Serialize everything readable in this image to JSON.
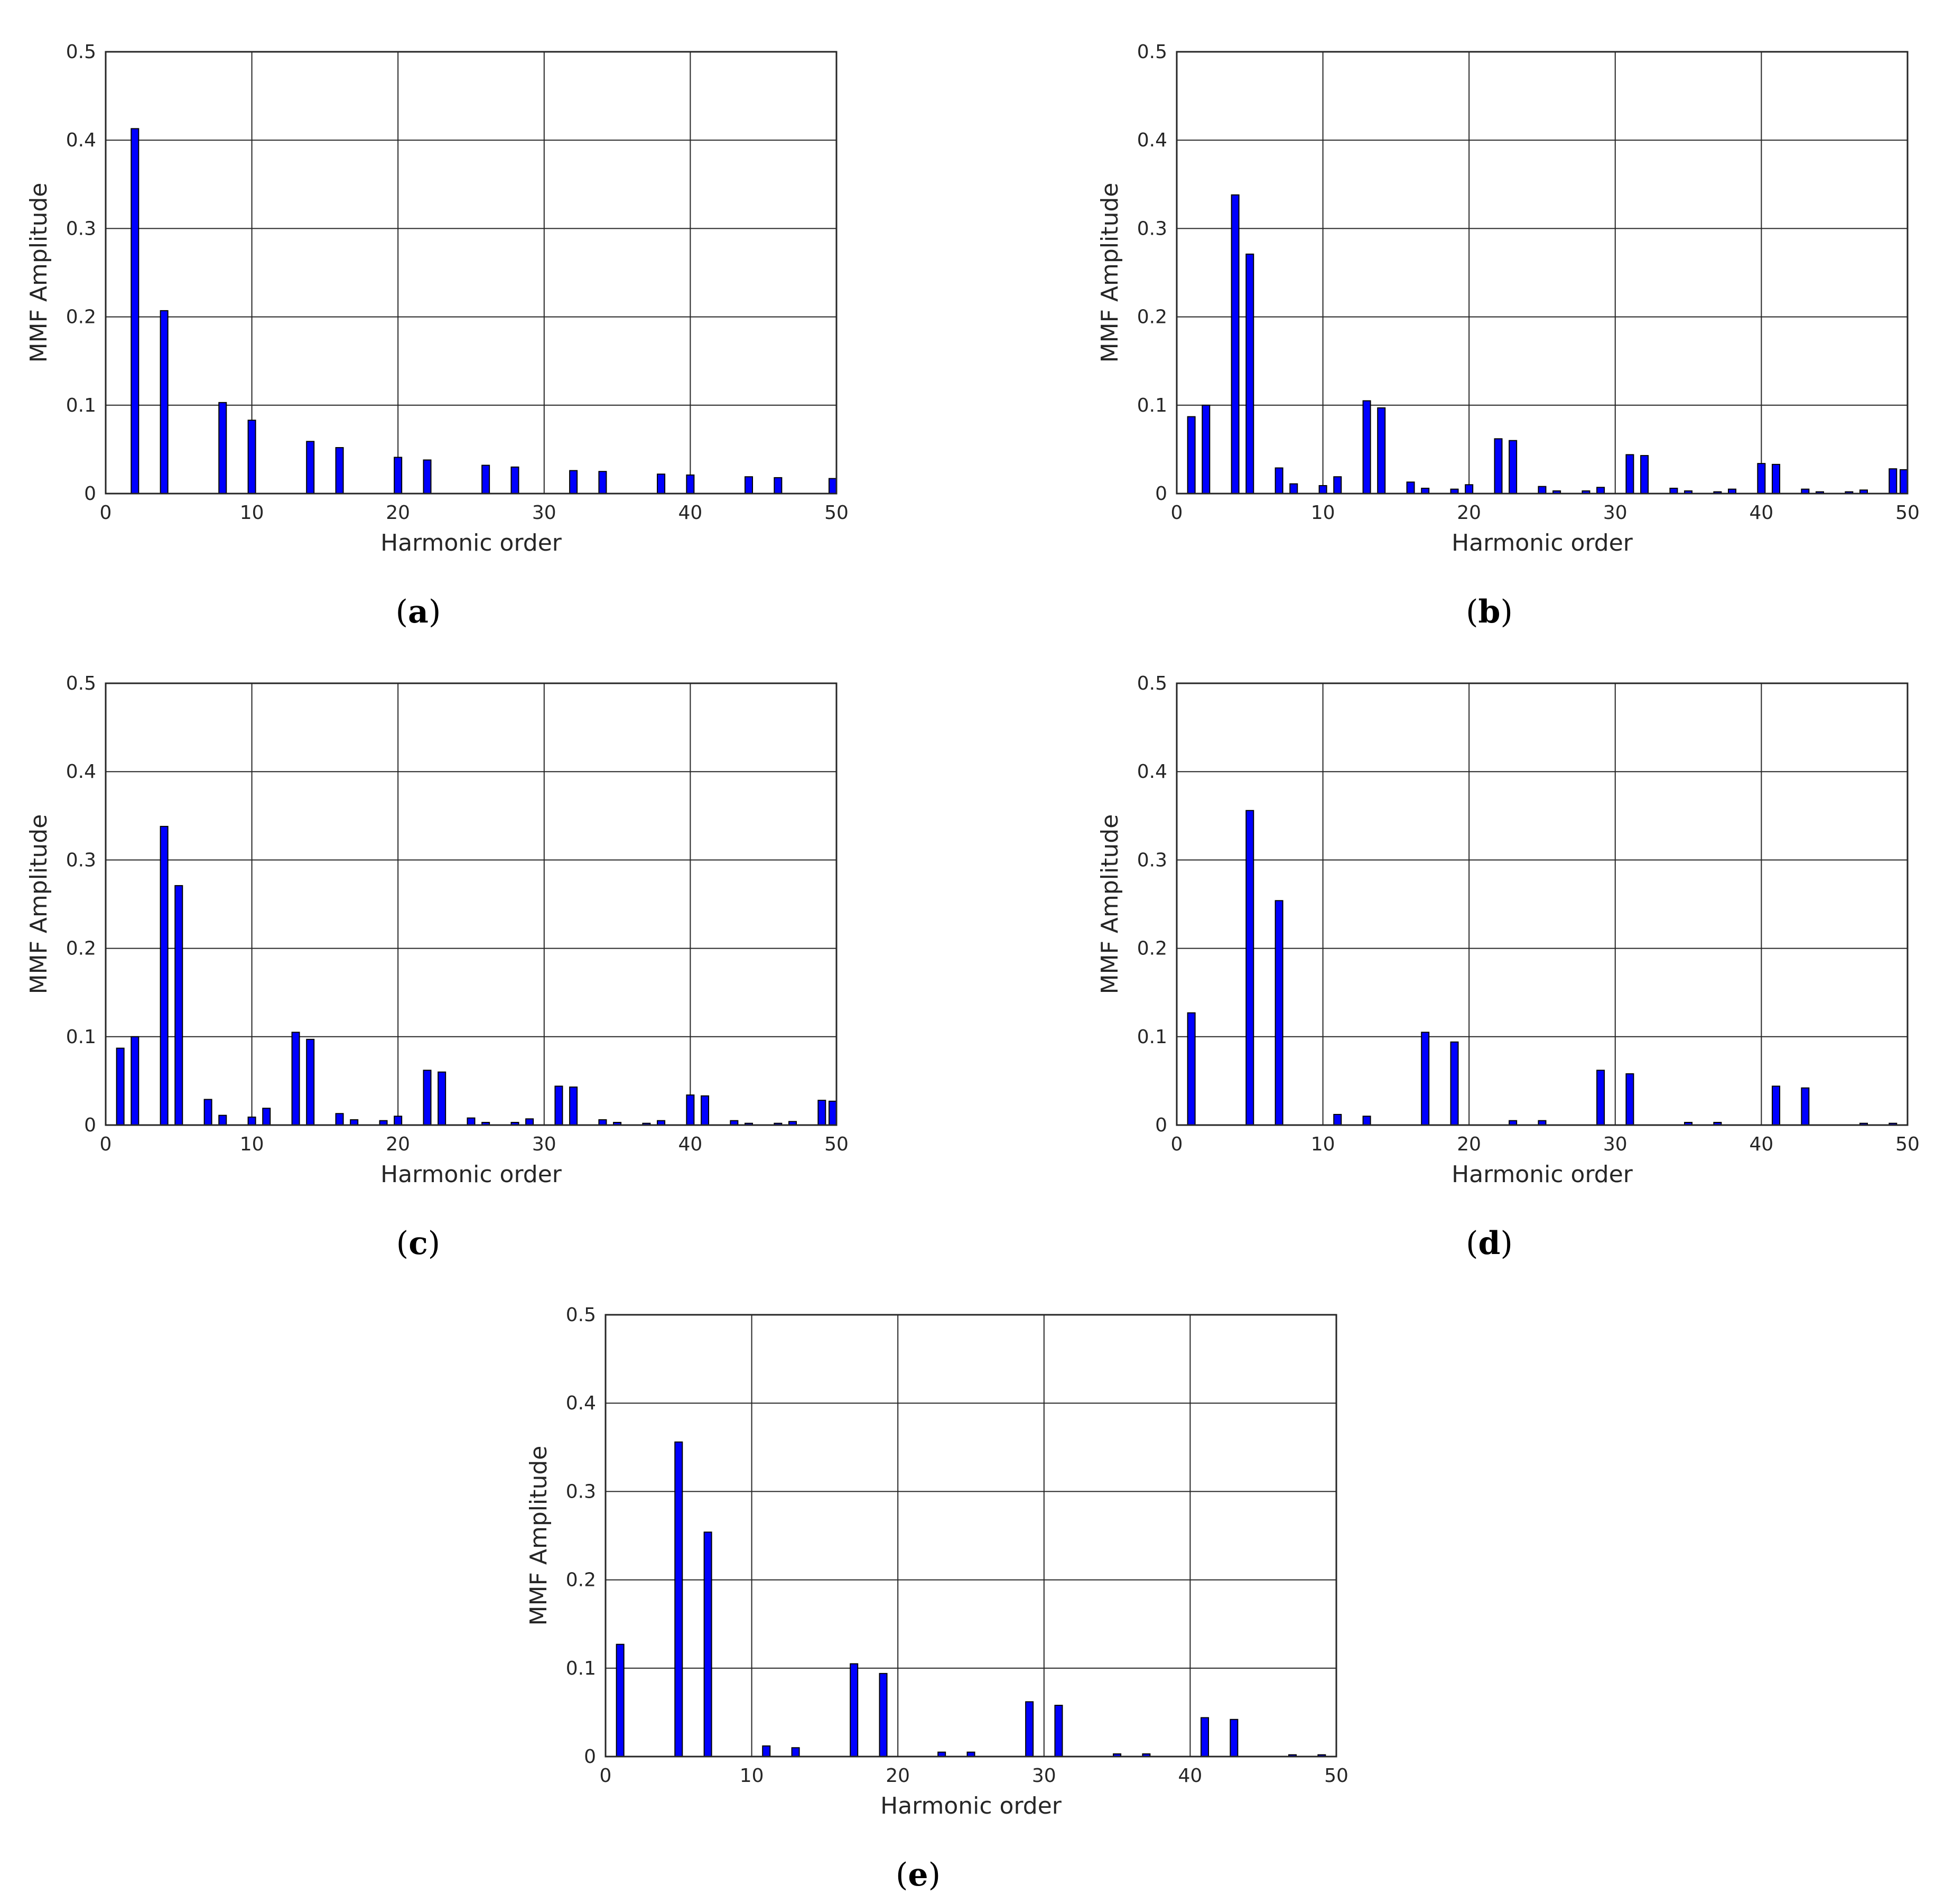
{
  "chart_data": [
    {
      "type": "bar",
      "panel_label": "a",
      "xlabel": "Harmonic order",
      "ylabel": "MMF Amplitude",
      "xlim": [
        0,
        50
      ],
      "ylim": [
        0,
        0.5
      ],
      "xticks": [
        "0",
        "10",
        "20",
        "30",
        "40",
        "50"
      ],
      "yticks": [
        "0",
        "0.1",
        "0.2",
        "0.3",
        "0.4",
        "0.5"
      ],
      "grid": true,
      "bar_color": "#0000ff",
      "x": [
        2,
        4,
        8,
        10,
        14,
        16,
        20,
        22,
        26,
        28,
        32,
        34,
        38,
        40,
        44,
        46,
        50
      ],
      "values": [
        0.413,
        0.207,
        0.103,
        0.083,
        0.059,
        0.052,
        0.041,
        0.038,
        0.032,
        0.03,
        0.026,
        0.025,
        0.022,
        0.021,
        0.019,
        0.018,
        0.017
      ]
    },
    {
      "type": "bar",
      "panel_label": "b",
      "xlabel": "Harmonic order",
      "ylabel": "MMF Amplitude",
      "xlim": [
        0,
        50
      ],
      "ylim": [
        0,
        0.5
      ],
      "xticks": [
        "0",
        "10",
        "20",
        "30",
        "40",
        "50"
      ],
      "yticks": [
        "0",
        "0.1",
        "0.2",
        "0.3",
        "0.4",
        "0.5"
      ],
      "grid": true,
      "bar_color": "#0000ff",
      "x": [
        1,
        2,
        4,
        5,
        7,
        8,
        10,
        11,
        13,
        14,
        16,
        17,
        19,
        20,
        22,
        23,
        25,
        26,
        28,
        29,
        31,
        32,
        34,
        35,
        37,
        38,
        40,
        41,
        43,
        44,
        46,
        47,
        49,
        50
      ],
      "values": [
        0.087,
        0.1,
        0.338,
        0.271,
        0.029,
        0.011,
        0.009,
        0.019,
        0.105,
        0.097,
        0.013,
        0.006,
        0.005,
        0.01,
        0.062,
        0.06,
        0.008,
        0.003,
        0.003,
        0.007,
        0.044,
        0.043,
        0.006,
        0.003,
        0.002,
        0.005,
        0.034,
        0.033,
        0.005,
        0.002,
        0.002,
        0.004,
        0.028,
        0.027
      ]
    },
    {
      "type": "bar",
      "panel_label": "c",
      "xlabel": "Harmonic order",
      "ylabel": "MMF Amplitude",
      "xlim": [
        0,
        50
      ],
      "ylim": [
        0,
        0.5
      ],
      "xticks": [
        "0",
        "10",
        "20",
        "30",
        "40",
        "50"
      ],
      "yticks": [
        "0",
        "0.1",
        "0.2",
        "0.3",
        "0.4",
        "0.5"
      ],
      "grid": true,
      "bar_color": "#0000ff",
      "x": [
        1,
        2,
        4,
        5,
        7,
        8,
        10,
        11,
        13,
        14,
        16,
        17,
        19,
        20,
        22,
        23,
        25,
        26,
        28,
        29,
        31,
        32,
        34,
        35,
        37,
        38,
        40,
        41,
        43,
        44,
        46,
        47,
        49,
        50
      ],
      "values": [
        0.087,
        0.1,
        0.338,
        0.271,
        0.029,
        0.011,
        0.009,
        0.019,
        0.105,
        0.097,
        0.013,
        0.006,
        0.005,
        0.01,
        0.062,
        0.06,
        0.008,
        0.003,
        0.003,
        0.007,
        0.044,
        0.043,
        0.006,
        0.003,
        0.002,
        0.005,
        0.034,
        0.033,
        0.005,
        0.002,
        0.002,
        0.004,
        0.028,
        0.027
      ]
    },
    {
      "type": "bar",
      "panel_label": "d",
      "xlabel": "Harmonic order",
      "ylabel": "MMF Amplitude",
      "xlim": [
        0,
        50
      ],
      "ylim": [
        0,
        0.5
      ],
      "xticks": [
        "0",
        "10",
        "20",
        "30",
        "40",
        "50"
      ],
      "yticks": [
        "0",
        "0.1",
        "0.2",
        "0.3",
        "0.4",
        "0.5"
      ],
      "grid": true,
      "bar_color": "#0000ff",
      "x": [
        1,
        5,
        7,
        11,
        13,
        17,
        19,
        23,
        25,
        29,
        31,
        35,
        37,
        41,
        43,
        47,
        49
      ],
      "values": [
        0.127,
        0.356,
        0.254,
        0.012,
        0.01,
        0.105,
        0.094,
        0.005,
        0.005,
        0.062,
        0.058,
        0.003,
        0.003,
        0.044,
        0.042,
        0.002,
        0.002
      ]
    },
    {
      "type": "bar",
      "panel_label": "e",
      "xlabel": "Harmonic order",
      "ylabel": "MMF Amplitude",
      "xlim": [
        0,
        50
      ],
      "ylim": [
        0,
        0.5
      ],
      "xticks": [
        "0",
        "10",
        "20",
        "30",
        "40",
        "50"
      ],
      "yticks": [
        "0",
        "0.1",
        "0.2",
        "0.3",
        "0.4",
        "0.5"
      ],
      "grid": true,
      "bar_color": "#0000ff",
      "x": [
        1,
        5,
        7,
        11,
        13,
        17,
        19,
        23,
        25,
        29,
        31,
        35,
        37,
        41,
        43,
        47,
        49
      ],
      "values": [
        0.127,
        0.356,
        0.254,
        0.012,
        0.01,
        0.105,
        0.094,
        0.005,
        0.005,
        0.062,
        0.058,
        0.003,
        0.003,
        0.044,
        0.042,
        0.002,
        0.002
      ]
    }
  ]
}
